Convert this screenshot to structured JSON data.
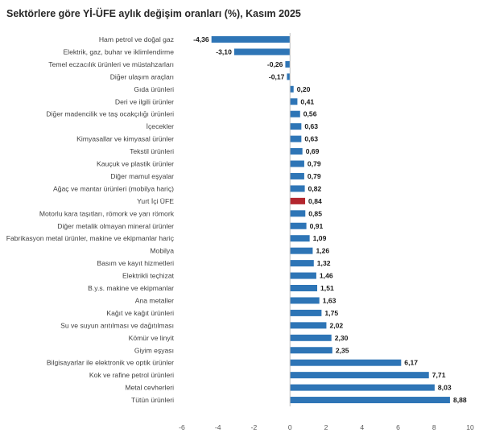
{
  "colors": {
    "bar": "#2e75b6",
    "highlight": "#b3262e",
    "axis": "#bfbfbf"
  },
  "chart_data": {
    "type": "bar",
    "orientation": "horizontal",
    "title": "Sektörlere göre Yİ-ÜFE aylık değişim oranları (%), Kasım 2025",
    "xlabel": "",
    "ylabel": "",
    "xlim": [
      -6,
      10
    ],
    "xticks": [
      -6,
      -4,
      -2,
      0,
      2,
      4,
      6,
      8,
      10
    ],
    "grid": false,
    "legend": "none",
    "highlight_category": "Yurt İçi ÜFE",
    "categories": [
      "Ham petrol ve doğal gaz",
      "Elektrik, gaz, buhar ve iklimlendirme",
      "Temel eczacılık ürünleri ve müstahzarları",
      "Diğer ulaşım araçları",
      "Gıda ürünleri",
      "Deri ve ilgili ürünler",
      "Diğer madencilik ve taş ocakçılığı ürünleri",
      "İçecekler",
      "Kimyasallar ve kimyasal ürünler",
      "Tekstil ürünleri",
      "Kauçuk ve plastik ürünler",
      "Diğer mamul eşyalar",
      "Ağaç ve mantar ürünleri (mobilya hariç)",
      "Yurt İçi ÜFE",
      "Motorlu kara taşıtları, römork ve yarı römork",
      "Diğer metalik olmayan mineral ürünler",
      "Fabrikasyon metal ürünler, makine ve ekipmanlar hariç",
      "Mobilya",
      "Basım ve kayıt hizmetleri",
      "Elektrikli teçhizat",
      "B.y.s. makine ve ekipmanlar",
      "Ana metaller",
      "Kağıt ve kağıt ürünleri",
      "Su ve suyun arıtılması ve dağıtılması",
      "Kömür ve linyit",
      "Giyim eşyası",
      "Bilgisayarlar ile elektronik ve optik ürünler",
      "Kok ve rafine petrol ürünleri",
      "Metal cevherleri",
      "Tütün ürünleri"
    ],
    "values": [
      -4.36,
      -3.1,
      -0.26,
      -0.17,
      0.2,
      0.41,
      0.56,
      0.63,
      0.63,
      0.69,
      0.79,
      0.79,
      0.82,
      0.84,
      0.85,
      0.91,
      1.09,
      1.26,
      1.32,
      1.46,
      1.51,
      1.63,
      1.75,
      2.02,
      2.3,
      2.35,
      6.17,
      7.71,
      8.03,
      8.88
    ],
    "value_labels": [
      "-4,36",
      "-3,10",
      "-0,26",
      "-0,17",
      "0,20",
      "0,41",
      "0,56",
      "0,63",
      "0,63",
      "0,69",
      "0,79",
      "0,79",
      "0,82",
      "0,84",
      "0,85",
      "0,91",
      "1,09",
      "1,26",
      "1,32",
      "1,46",
      "1,51",
      "1,63",
      "1,75",
      "2,02",
      "2,30",
      "2,35",
      "6,17",
      "7,71",
      "8,03",
      "8,88"
    ]
  }
}
